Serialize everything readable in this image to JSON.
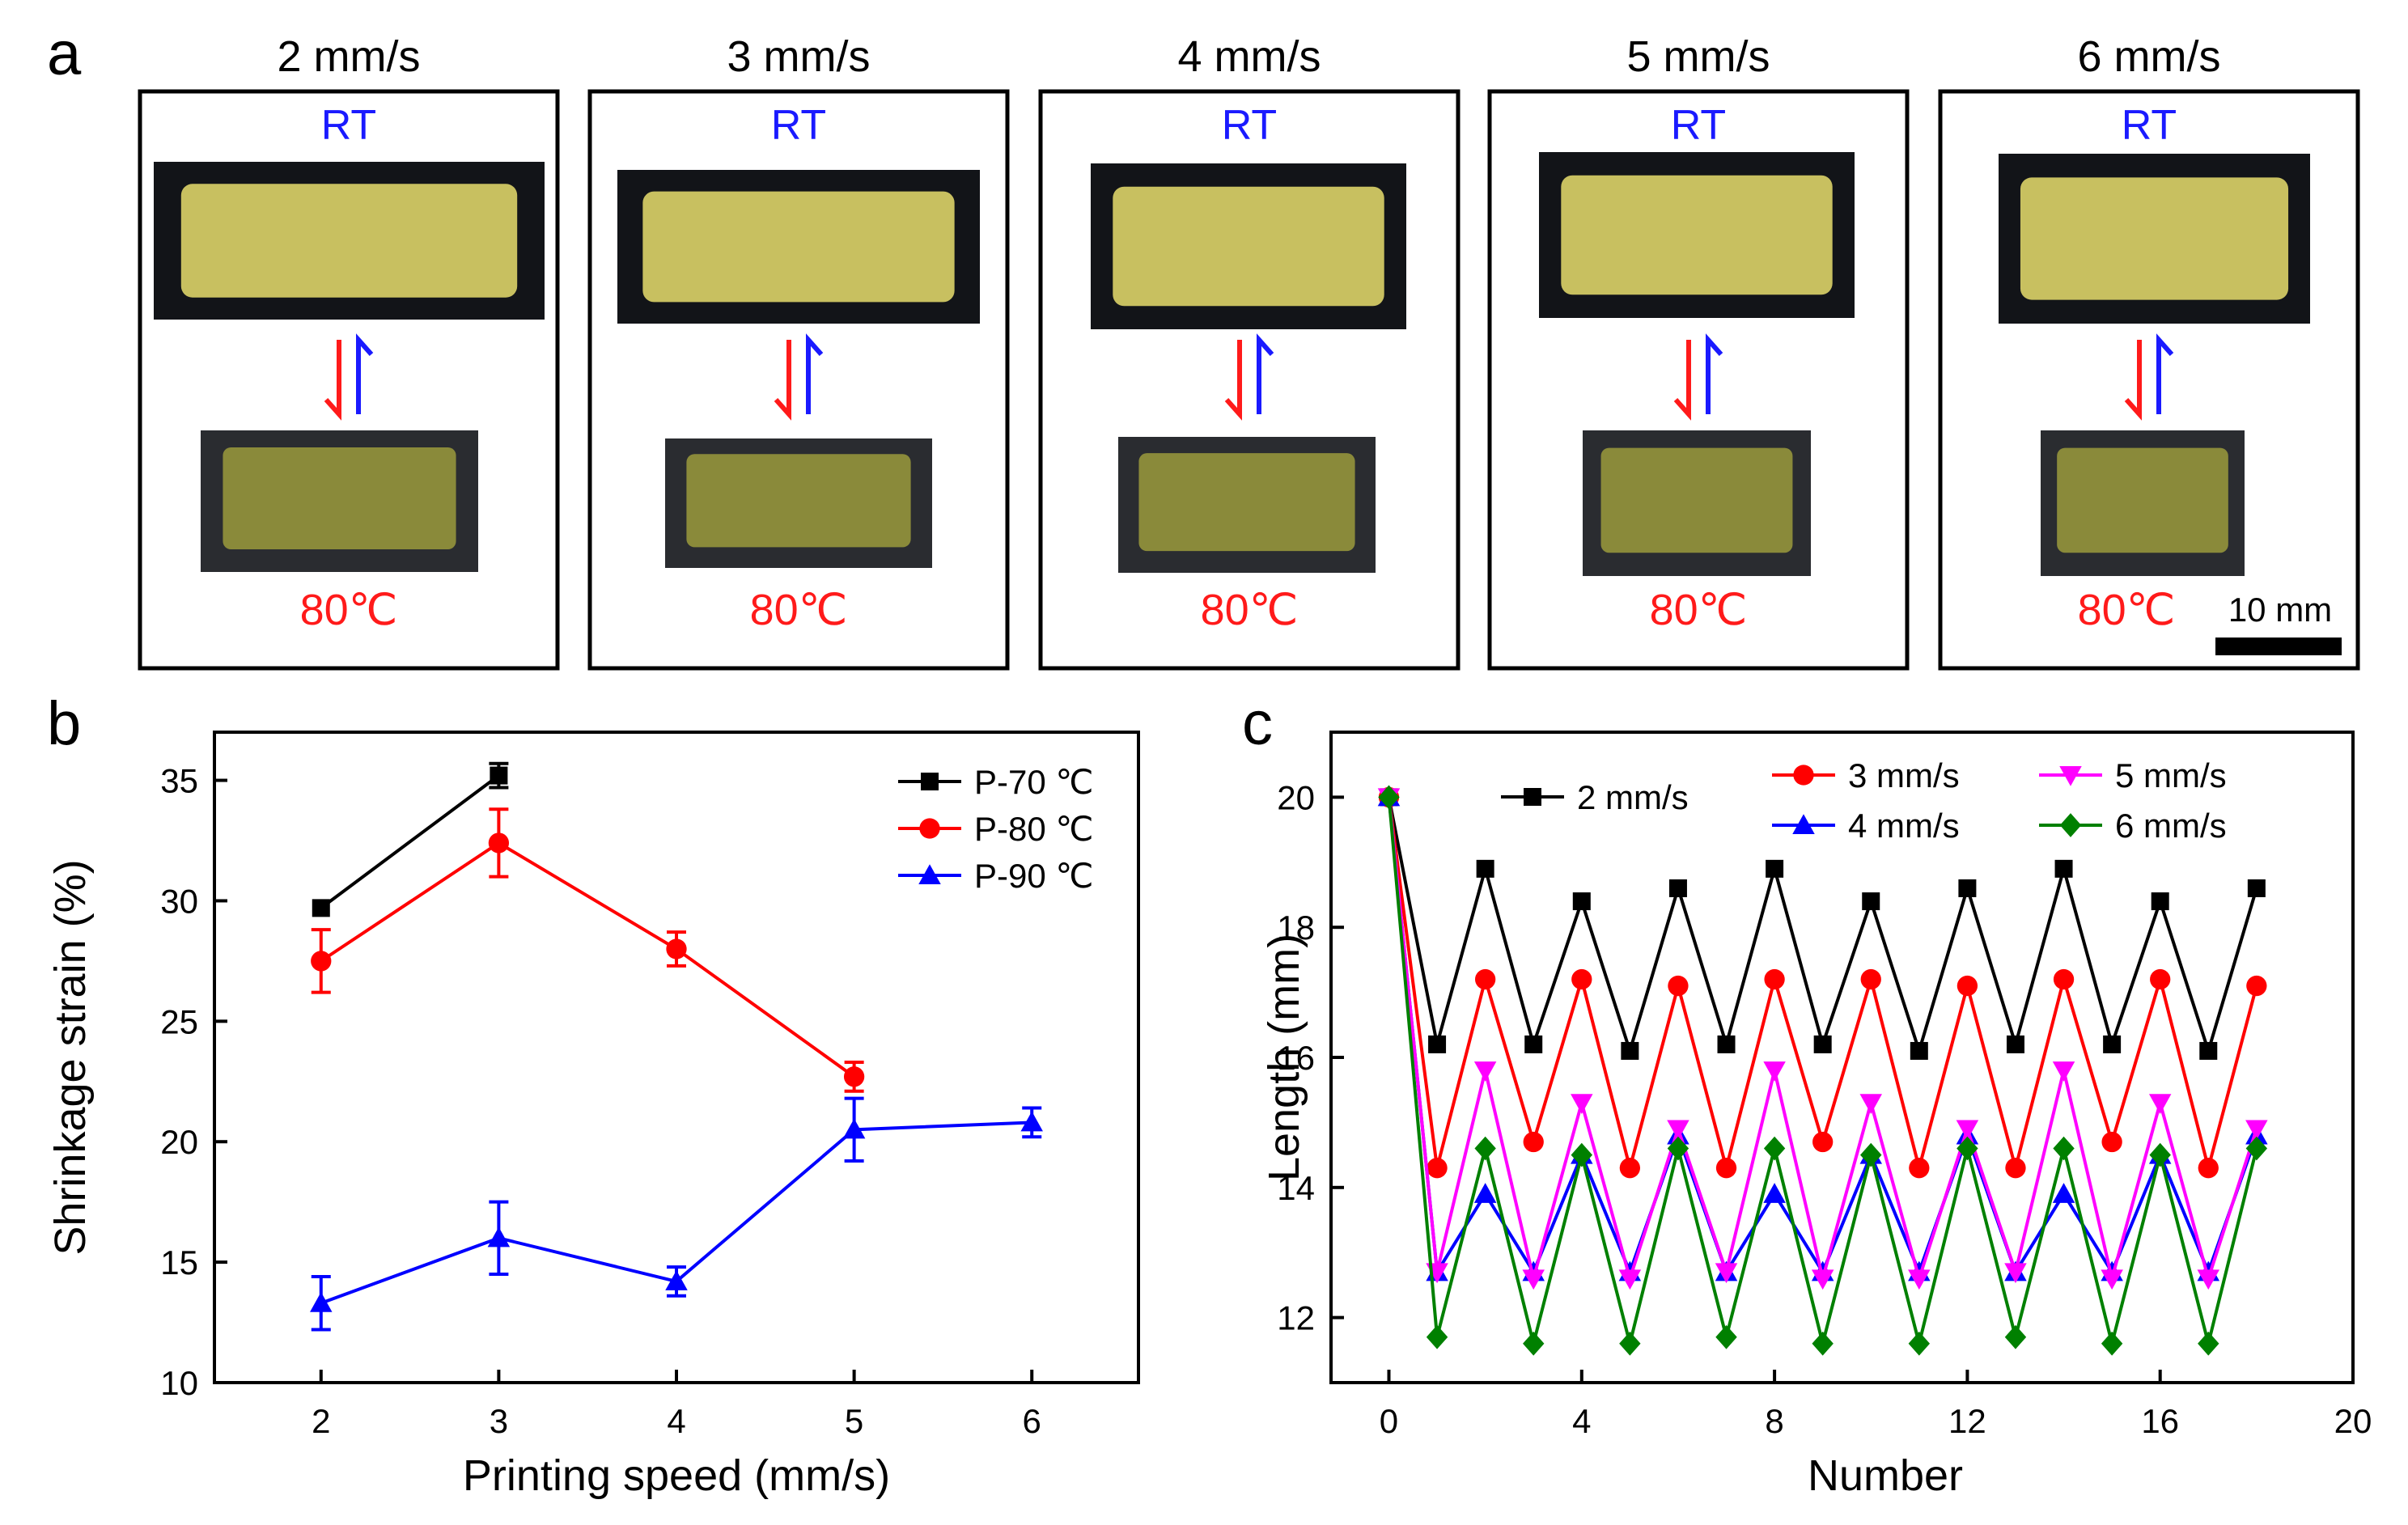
{
  "figure": {
    "panel_labels": [
      "a",
      "b",
      "c"
    ]
  },
  "panel_a": {
    "speeds": [
      "2 mm/s",
      "3 mm/s",
      "4 mm/s",
      "5 mm/s",
      "6 mm/s"
    ],
    "top_label": "RT",
    "bottom_label": "80℃",
    "scale_bar_label": "10 mm",
    "colors": {
      "rt": "#1a1aff",
      "hot": "#ff1a1a",
      "sample_rt": "#c8c060",
      "sample_hot": "#8a8a3a",
      "photo_bg": "#121418"
    }
  },
  "chart_data": [
    {
      "type": "line",
      "title": "",
      "xlabel": "Printing speed (mm/s)",
      "ylabel": "Shrinkage strain (%)",
      "xlim": [
        1.4,
        6.6
      ],
      "ylim": [
        10,
        37
      ],
      "xticks": [
        2,
        3,
        4,
        5,
        6
      ],
      "yticks": [
        10,
        15,
        20,
        25,
        30,
        35
      ],
      "legend": "top-right",
      "series": [
        {
          "name": "P-70 ℃",
          "color": "#000000",
          "marker": "square",
          "x": [
            2,
            3
          ],
          "values": [
            29.7,
            35.2
          ],
          "errors": [
            0,
            0.5
          ]
        },
        {
          "name": "P-80 ℃",
          "color": "#ff0000",
          "marker": "circle",
          "x": [
            2,
            3,
            4,
            5
          ],
          "values": [
            27.5,
            32.4,
            28.0,
            22.7
          ],
          "errors": [
            1.3,
            1.4,
            0.7,
            0.6
          ]
        },
        {
          "name": "P-90 ℃",
          "color": "#0000ff",
          "marker": "triangle",
          "x": [
            2,
            3,
            4,
            5,
            6
          ],
          "values": [
            13.3,
            16.0,
            14.2,
            20.5,
            20.8
          ],
          "errors": [
            1.1,
            1.5,
            0.6,
            1.3,
            0.6
          ]
        }
      ]
    },
    {
      "type": "line",
      "title": "",
      "xlabel": "Number",
      "ylabel": "Length (mm)",
      "xlim": [
        -1.2,
        20
      ],
      "ylim": [
        11,
        21
      ],
      "xticks": [
        0,
        4,
        8,
        12,
        16,
        20
      ],
      "yticks": [
        12,
        14,
        16,
        18,
        20
      ],
      "legend": "top",
      "x": [
        0,
        1,
        2,
        3,
        4,
        5,
        6,
        7,
        8,
        9,
        10,
        11,
        12,
        13,
        14,
        15,
        16,
        17,
        18
      ],
      "series": [
        {
          "name": "2 mm/s",
          "color": "#000000",
          "marker": "square",
          "values": [
            20,
            16.2,
            18.9,
            16.2,
            18.4,
            16.1,
            18.6,
            16.2,
            18.9,
            16.2,
            18.4,
            16.1,
            18.6,
            16.2,
            18.9,
            16.2,
            18.4,
            16.1,
            18.6
          ]
        },
        {
          "name": "3 mm/s",
          "color": "#ff0000",
          "marker": "circle",
          "values": [
            20,
            14.3,
            17.2,
            14.7,
            17.2,
            14.3,
            17.1,
            14.3,
            17.2,
            14.7,
            17.2,
            14.3,
            17.1,
            14.3,
            17.2,
            14.7,
            17.2,
            14.3,
            17.1
          ]
        },
        {
          "name": "4 mm/s",
          "color": "#0000ff",
          "marker": "triangle",
          "values": [
            20,
            12.7,
            13.9,
            12.7,
            14.5,
            12.7,
            14.8,
            12.7,
            13.9,
            12.7,
            14.5,
            12.7,
            14.8,
            12.7,
            13.9,
            12.7,
            14.5,
            12.7,
            14.8
          ]
        },
        {
          "name": "5 mm/s",
          "color": "#ff00ff",
          "marker": "triangle-down",
          "values": [
            20,
            12.7,
            15.8,
            12.6,
            15.3,
            12.6,
            14.9,
            12.7,
            15.8,
            12.6,
            15.3,
            12.6,
            14.9,
            12.7,
            15.8,
            12.6,
            15.3,
            12.6,
            14.9
          ]
        },
        {
          "name": "6 mm/s",
          "color": "#008000",
          "marker": "diamond",
          "values": [
            20,
            11.7,
            14.6,
            11.6,
            14.5,
            11.6,
            14.6,
            11.7,
            14.6,
            11.6,
            14.5,
            11.6,
            14.6,
            11.7,
            14.6,
            11.6,
            14.5,
            11.6,
            14.6
          ]
        }
      ]
    }
  ]
}
